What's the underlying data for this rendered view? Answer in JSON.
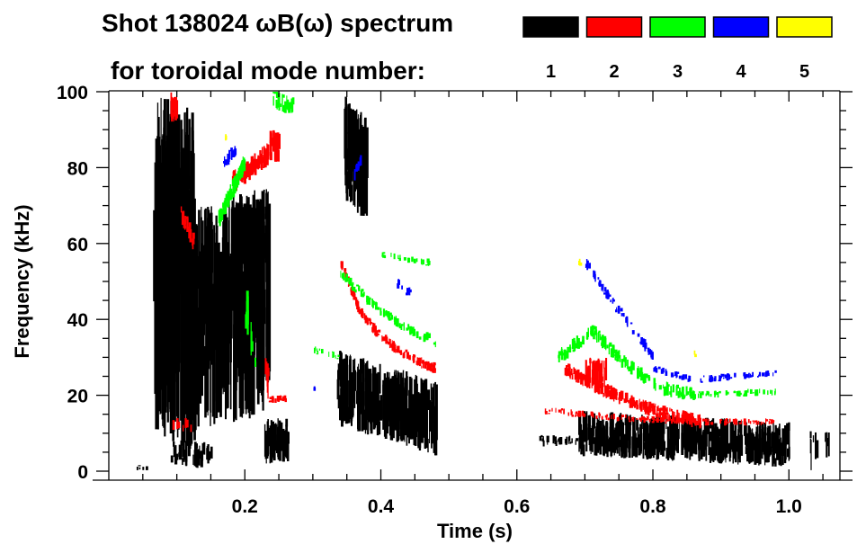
{
  "chart_data": {
    "type": "heatmap",
    "title": "Shot 138024 ωB(ω) spectrum",
    "legend_title": "for toroidal mode number:",
    "legend_placement": "top-right",
    "legend": [
      {
        "label": "1",
        "color": "#000000"
      },
      {
        "label": "2",
        "color": "#ff0000"
      },
      {
        "label": "3",
        "color": "#00ff00"
      },
      {
        "label": "4",
        "color": "#0000ff"
      },
      {
        "label": "5",
        "color": "#ffff00"
      }
    ],
    "xlabel": "Time (s)",
    "ylabel": "Frequency (kHz)",
    "xlim": [
      0,
      1.075
    ],
    "ylim": [
      0,
      100
    ],
    "xticks": [
      "0.2",
      "0.4",
      "0.6",
      "0.8",
      "1.0"
    ],
    "xtick_values": [
      0.2,
      0.4,
      0.6,
      0.8,
      1.0
    ],
    "yticks": [
      "0",
      "20",
      "40",
      "60",
      "80",
      "100"
    ],
    "ytick_values": [
      0,
      20,
      40,
      60,
      80,
      100
    ],
    "features": [
      {
        "mode": 1,
        "t": [
          0.065,
          0.125
        ],
        "f": [
          55,
          50
        ],
        "w": 90,
        "n": 260
      },
      {
        "mode": 1,
        "t": [
          0.11,
          0.235
        ],
        "f": [
          40,
          45
        ],
        "w": 60,
        "n": 300
      },
      {
        "mode": 1,
        "t": [
          0.18,
          0.23
        ],
        "f": [
          62,
          62
        ],
        "w": 18,
        "n": 120
      },
      {
        "mode": 1,
        "t": [
          0.09,
          0.15
        ],
        "f": [
          5,
          4
        ],
        "w": 7,
        "n": 50
      },
      {
        "mode": 1,
        "t": [
          0.228,
          0.262
        ],
        "f": [
          8,
          8
        ],
        "w": 12,
        "n": 70
      },
      {
        "mode": 1,
        "t": [
          0.345,
          0.378
        ],
        "f": [
          85,
          80
        ],
        "w": 28,
        "n": 80
      },
      {
        "mode": 1,
        "t": [
          0.335,
          0.48
        ],
        "f": [
          22,
          14
        ],
        "w": 20,
        "n": 320
      },
      {
        "mode": 1,
        "t": [
          0.69,
          1.0
        ],
        "f": [
          10,
          7
        ],
        "w": 12,
        "n": 480
      },
      {
        "mode": 1,
        "t": [
          0.63,
          0.69
        ],
        "f": [
          8,
          8
        ],
        "w": 3,
        "n": 25
      },
      {
        "mode": 1,
        "t": [
          1.03,
          1.06
        ],
        "f": [
          5,
          5
        ],
        "w": 12,
        "n": 10
      },
      {
        "mode": 1,
        "t": [
          0.035,
          0.055
        ],
        "f": [
          1,
          1
        ],
        "w": 1.5,
        "n": 5
      },
      {
        "mode": 2,
        "t": [
          0.09,
          0.1
        ],
        "f": [
          96,
          96
        ],
        "w": 8,
        "n": 15
      },
      {
        "mode": 2,
        "t": [
          0.105,
          0.125
        ],
        "f": [
          68,
          60
        ],
        "w": 5,
        "n": 20
      },
      {
        "mode": 2,
        "t": [
          0.18,
          0.235
        ],
        "f": [
          76,
          84
        ],
        "w": 6,
        "n": 70
      },
      {
        "mode": 2,
        "t": [
          0.236,
          0.25
        ],
        "f": [
          86,
          86
        ],
        "w": 9,
        "n": 20
      },
      {
        "mode": 2,
        "t": [
          0.228,
          0.235
        ],
        "f": [
          30,
          20
        ],
        "w": 8,
        "n": 10
      },
      {
        "mode": 2,
        "t": [
          0.235,
          0.26
        ],
        "f": [
          19,
          19
        ],
        "w": 2,
        "n": 18
      },
      {
        "mode": 2,
        "t": [
          0.34,
          0.48
        ],
        "f": [
          55,
          42,
          36,
          32,
          29,
          27
        ],
        "w": 3,
        "n": 150
      },
      {
        "mode": 2,
        "t": [
          0.67,
          0.87
        ],
        "f": [
          27,
          22,
          18,
          15,
          13
        ],
        "w": 4,
        "n": 200
      },
      {
        "mode": 2,
        "t": [
          0.64,
          0.98
        ],
        "f": [
          16,
          14,
          13,
          13
        ],
        "w": 2,
        "n": 150
      },
      {
        "mode": 2,
        "t": [
          0.7,
          0.73
        ],
        "f": [
          26,
          26
        ],
        "w": 8,
        "n": 40
      },
      {
        "mode": 2,
        "t": [
          0.09,
          0.12
        ],
        "f": [
          12,
          12
        ],
        "w": 4,
        "n": 8
      },
      {
        "mode": 3,
        "t": [
          0.16,
          0.2
        ],
        "f": [
          66,
          82
        ],
        "w": 5,
        "n": 60
      },
      {
        "mode": 3,
        "t": [
          0.24,
          0.27
        ],
        "f": [
          98,
          96
        ],
        "w": 5,
        "n": 30
      },
      {
        "mode": 3,
        "t": [
          0.34,
          0.48
        ],
        "f": [
          52,
          44,
          38,
          34
        ],
        "w": 3,
        "n": 80
      },
      {
        "mode": 3,
        "t": [
          0.4,
          0.47
        ],
        "f": [
          57,
          55
        ],
        "w": 2,
        "n": 25
      },
      {
        "mode": 3,
        "t": [
          0.3,
          0.34
        ],
        "f": [
          32,
          30
        ],
        "w": 2,
        "n": 15
      },
      {
        "mode": 3,
        "t": [
          0.66,
          0.86
        ],
        "f": [
          30,
          37,
          28,
          22,
          20
        ],
        "w": 4,
        "n": 150
      },
      {
        "mode": 3,
        "t": [
          0.84,
          0.98
        ],
        "f": [
          20,
          21
        ],
        "w": 2,
        "n": 60
      },
      {
        "mode": 3,
        "t": [
          0.2,
          0.215
        ],
        "f": [
          45,
          25
        ],
        "w": 15,
        "n": 10
      },
      {
        "mode": 4,
        "t": [
          0.16,
          0.185
        ],
        "f": [
          80,
          85
        ],
        "w": 4,
        "n": 15
      },
      {
        "mode": 4,
        "t": [
          0.36,
          0.37
        ],
        "f": [
          78,
          82
        ],
        "w": 4,
        "n": 8
      },
      {
        "mode": 4,
        "t": [
          0.42,
          0.45
        ],
        "f": [
          50,
          46
        ],
        "w": 3,
        "n": 10
      },
      {
        "mode": 4,
        "t": [
          0.7,
          0.8
        ],
        "f": [
          55,
          46,
          38,
          30
        ],
        "w": 3,
        "n": 60
      },
      {
        "mode": 4,
        "t": [
          0.8,
          0.98
        ],
        "f": [
          27,
          24,
          25,
          26
        ],
        "w": 2,
        "n": 80
      },
      {
        "mode": 4,
        "t": [
          0.3,
          0.305
        ],
        "f": [
          22,
          22
        ],
        "w": 2,
        "n": 3
      },
      {
        "mode": 5,
        "t": [
          0.17,
          0.172
        ],
        "f": [
          88,
          88
        ],
        "w": 2,
        "n": 3
      },
      {
        "mode": 5,
        "t": [
          0.69,
          0.692
        ],
        "f": [
          55,
          55
        ],
        "w": 2,
        "n": 3
      },
      {
        "mode": 5,
        "t": [
          0.86,
          0.862
        ],
        "f": [
          31,
          31
        ],
        "w": 2,
        "n": 3
      }
    ]
  }
}
